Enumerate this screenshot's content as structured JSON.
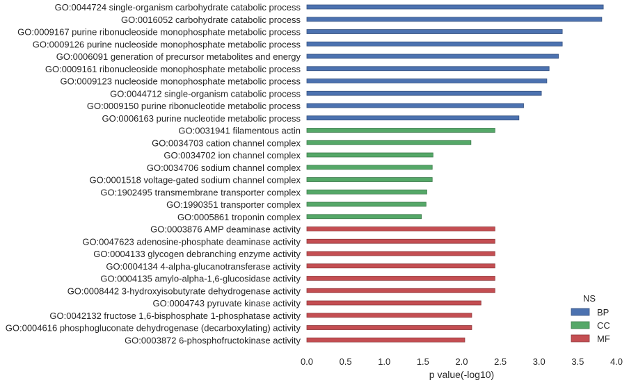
{
  "chart_data": {
    "type": "bar",
    "orientation": "horizontal",
    "title": "",
    "xlabel": "p value(-log10)",
    "ylabel": "",
    "xlim": [
      0,
      4.0
    ],
    "xticks": [
      "0.0",
      "0.5",
      "1.0",
      "1.5",
      "2.0",
      "2.5",
      "3.0",
      "3.5",
      "4.0"
    ],
    "grid": false,
    "legend": {
      "title": "NS",
      "placement": "lower-right",
      "entries": [
        {
          "name": "BP",
          "color": "#4c72b0"
        },
        {
          "name": "CC",
          "color": "#55a868"
        },
        {
          "name": "MF",
          "color": "#c44e52"
        }
      ]
    },
    "categories": [
      {
        "label": "GO:0044724 single-organism carbohydrate catabolic process",
        "value": 3.83,
        "ns": "BP"
      },
      {
        "label": "GO:0016052 carbohydrate catabolic process",
        "value": 3.81,
        "ns": "BP"
      },
      {
        "label": "GO:0009167 purine ribonucleoside monophosphate metabolic process",
        "value": 3.3,
        "ns": "BP"
      },
      {
        "label": "GO:0009126 purine nucleoside monophosphate metabolic process",
        "value": 3.3,
        "ns": "BP"
      },
      {
        "label": "GO:0006091 generation of precursor metabolites and energy",
        "value": 3.25,
        "ns": "BP"
      },
      {
        "label": "GO:0009161 ribonucleoside monophosphate metabolic process",
        "value": 3.13,
        "ns": "BP"
      },
      {
        "label": "GO:0009123 nucleoside monophosphate metabolic process",
        "value": 3.1,
        "ns": "BP"
      },
      {
        "label": "GO:0044712 single-organism catabolic process",
        "value": 3.03,
        "ns": "BP"
      },
      {
        "label": "GO:0009150 purine ribonucleotide metabolic process",
        "value": 2.8,
        "ns": "BP"
      },
      {
        "label": "GO:0006163 purine nucleotide metabolic process",
        "value": 2.74,
        "ns": "BP"
      },
      {
        "label": "GO:0031941 filamentous actin",
        "value": 2.43,
        "ns": "CC"
      },
      {
        "label": "GO:0034703 cation channel complex",
        "value": 2.12,
        "ns": "CC"
      },
      {
        "label": "GO:0034702 ion channel complex",
        "value": 1.63,
        "ns": "CC"
      },
      {
        "label": "GO:0034706 sodium channel complex",
        "value": 1.62,
        "ns": "CC"
      },
      {
        "label": "GO:0001518 voltage-gated sodium channel complex",
        "value": 1.62,
        "ns": "CC"
      },
      {
        "label": "GO:1902495 transmembrane transporter complex",
        "value": 1.55,
        "ns": "CC"
      },
      {
        "label": "GO:1990351 transporter complex",
        "value": 1.54,
        "ns": "CC"
      },
      {
        "label": "GO:0005861 troponin complex",
        "value": 1.48,
        "ns": "CC"
      },
      {
        "label": "GO:0003876 AMP deaminase activity",
        "value": 2.43,
        "ns": "MF"
      },
      {
        "label": "GO:0047623 adenosine-phosphate deaminase activity",
        "value": 2.43,
        "ns": "MF"
      },
      {
        "label": "GO:0004133 glycogen debranching enzyme activity",
        "value": 2.43,
        "ns": "MF"
      },
      {
        "label": "GO:0004134 4-alpha-glucanotransferase activity",
        "value": 2.43,
        "ns": "MF"
      },
      {
        "label": "GO:0004135 amylo-alpha-1,6-glucosidase activity",
        "value": 2.43,
        "ns": "MF"
      },
      {
        "label": "GO:0008442 3-hydroxyisobutyrate dehydrogenase activity",
        "value": 2.43,
        "ns": "MF"
      },
      {
        "label": "GO:0004743 pyruvate kinase activity",
        "value": 2.25,
        "ns": "MF"
      },
      {
        "label": "GO:0042132 fructose 1,6-bisphosphate 1-phosphatase activity",
        "value": 2.13,
        "ns": "MF"
      },
      {
        "label": "GO:0004616 phosphogluconate dehydrogenase (decarboxylating) activity",
        "value": 2.13,
        "ns": "MF"
      },
      {
        "label": "GO:0003872 6-phosphofructokinase activity",
        "value": 2.04,
        "ns": "MF"
      }
    ]
  }
}
